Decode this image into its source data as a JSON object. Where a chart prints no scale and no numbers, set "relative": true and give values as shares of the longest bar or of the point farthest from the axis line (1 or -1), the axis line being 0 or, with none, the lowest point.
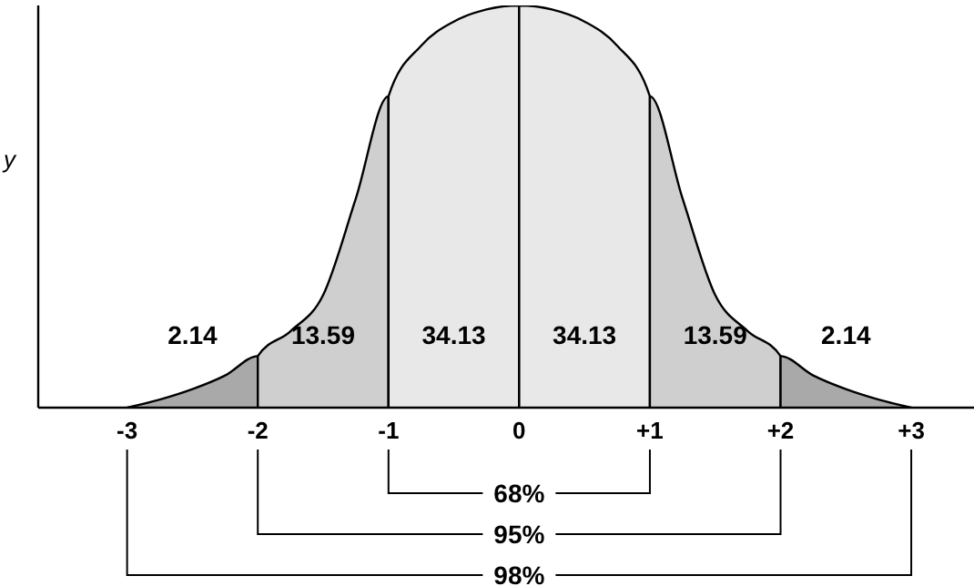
{
  "chart_data": {
    "type": "area",
    "relative": true,
    "ylabel": "y",
    "xlim": [
      -3.68,
      3.48
    ],
    "xticks": [
      {
        "value": -3,
        "label": "-3"
      },
      {
        "value": -2,
        "label": "-2"
      },
      {
        "value": -1,
        "label": "-1"
      },
      0,
      {
        "value": 1,
        "label": "+1"
      },
      {
        "value": 2,
        "label": "+2"
      },
      {
        "value": 3,
        "label": "+3"
      }
    ],
    "series": [
      {
        "color": "#a9a9a9",
        "x": [
          -3,
          -2.75,
          -2.5,
          -2.25,
          -2,
          -2
        ],
        "values": [
          0,
          0.02,
          0.046,
          0.08,
          0.128,
          0
        ]
      },
      {
        "color": "#cfcfcf",
        "x": [
          -2,
          -2,
          -1.75,
          -1.5,
          -1.25,
          -1,
          -1
        ],
        "values": [
          0,
          0.128,
          0.19,
          0.28,
          0.52,
          0.774,
          0
        ]
      },
      {
        "color": "#e8e8e8",
        "x": [
          -1,
          -1,
          -0.75,
          -0.5,
          -0.25,
          0,
          0
        ],
        "values": [
          0,
          0.774,
          0.9,
          0.96,
          0.99,
          1,
          0
        ]
      },
      {
        "color": "#e8e8e8",
        "x": [
          0,
          0,
          0.25,
          0.5,
          0.75,
          1,
          1
        ],
        "values": [
          0,
          1,
          0.99,
          0.96,
          0.9,
          0.774,
          0
        ]
      },
      {
        "color": "#cfcfcf",
        "x": [
          1,
          1,
          1.25,
          1.5,
          1.75,
          2,
          2
        ],
        "values": [
          0,
          0.774,
          0.52,
          0.28,
          0.19,
          0.128,
          0
        ]
      },
      {
        "color": "#a9a9a9",
        "x": [
          2,
          2,
          2.25,
          2.5,
          2.75,
          3
        ],
        "values": [
          0,
          0.128,
          0.08,
          0.046,
          0.02,
          0
        ]
      }
    ],
    "annotations": [
      "2.14",
      "13.59",
      "34.13",
      "34.13",
      "13.59",
      "2.14",
      "68%",
      "95%",
      "98%"
    ]
  }
}
